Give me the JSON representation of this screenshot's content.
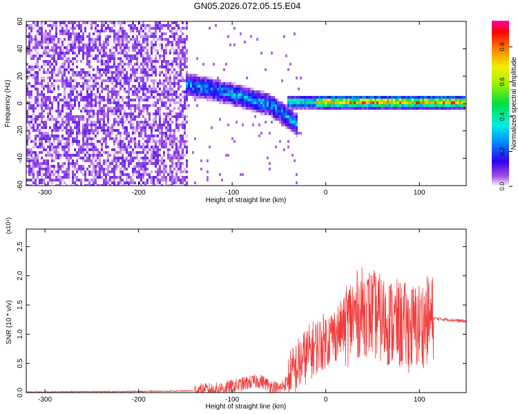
{
  "title": "GN05.2026.072.05.15.E04",
  "chart_data": [
    {
      "type": "heatmap",
      "xlabel": "Height of straight line (km)",
      "ylabel": "Frequency (Hz)",
      "xlim": [
        -320,
        150
      ],
      "ylim": [
        -60,
        60
      ],
      "xticks": [
        -300,
        -200,
        -100,
        0,
        100
      ],
      "yticks": [
        -60,
        -40,
        -20,
        0,
        20,
        40,
        60
      ],
      "colorbar": {
        "label": "Normalized spectral amplitude",
        "range": [
          0.0,
          0.95
        ],
        "ticks": [
          0.0,
          0.2,
          0.4,
          0.6,
          0.8
        ],
        "colormap": "rainbow (white-violet-blue-cyan-green-yellow-orange-red-magenta)"
      },
      "features": [
        {
          "x_range": [
            -320,
            -148
          ],
          "frequency_range": [
            -60,
            60
          ],
          "amplitude": 0.07,
          "description": "broadband noise"
        },
        {
          "x": [
            -150,
            -120,
            -90,
            -60,
            -45,
            -30
          ],
          "frequency": [
            14,
            10,
            5,
            -1,
            -8,
            -16
          ],
          "amplitude": 0.3,
          "description": "descending band"
        },
        {
          "x_range": [
            -40,
            150
          ],
          "frequency": 1,
          "amplitude": 0.85,
          "description": "narrow band"
        }
      ]
    },
    {
      "type": "line",
      "xlabel": "Height of straight line (km)",
      "ylabel": "SNR (10 * v/v)",
      "scale_label": "(x10⁴)",
      "xlim": [
        -320,
        150
      ],
      "ylim": [
        0,
        2.8
      ],
      "xticks": [
        -300,
        -200,
        -100,
        0,
        100
      ],
      "yticks": [
        0.0,
        0.5,
        1.0,
        1.5,
        2.0,
        2.5
      ],
      "series": [
        {
          "color": "#f03c3c",
          "x": [
            -320,
            -200,
            -140,
            -120,
            -100,
            -80,
            -70,
            -60,
            -50,
            -40,
            -30,
            -20,
            -10,
            0,
            10,
            20,
            30,
            40,
            50,
            60,
            70,
            80,
            90,
            100,
            110,
            115,
            130,
            150
          ],
          "y": [
            0.01,
            0.02,
            0.03,
            0.05,
            0.1,
            0.18,
            0.2,
            0.12,
            0.06,
            0.2,
            0.45,
            0.65,
            0.8,
            0.9,
            1.0,
            1.15,
            1.3,
            1.4,
            1.35,
            1.25,
            1.2,
            1.15,
            1.1,
            1.15,
            1.25,
            1.27,
            1.25,
            1.22
          ]
        }
      ]
    }
  ]
}
